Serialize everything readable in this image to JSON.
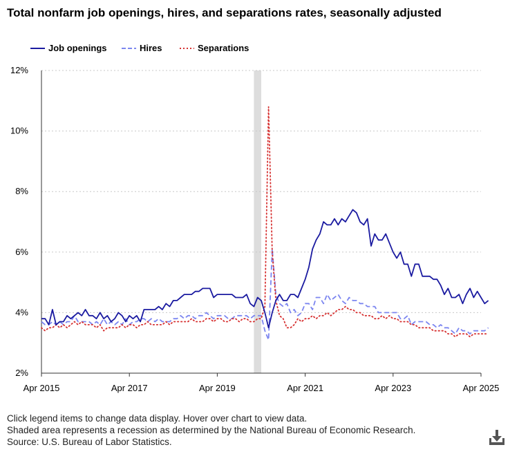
{
  "title": "Total nonfarm job openings, hires, and separations rates, seasonally adjusted",
  "legend": [
    {
      "label": "Job openings",
      "color": "#1a1aa0",
      "style": "solid"
    },
    {
      "label": "Hires",
      "color": "#7c86f0",
      "style": "dashed"
    },
    {
      "label": "Separations",
      "color": "#d63030",
      "style": "dotted"
    }
  ],
  "notes": {
    "line1": "Click legend items to change data display. Hover over chart to view data.",
    "line2": "Shaded area represents a recession as determined by the National Bureau of Economic Research.",
    "source": "Source: U.S. Bureau of Labor Statistics."
  },
  "download_icon": "download-icon",
  "chart_data": {
    "type": "line",
    "x_start": "Apr 2015",
    "x_frequency": "monthly",
    "x_tick_labels": [
      "Apr 2015",
      "Apr 2017",
      "Apr 2019",
      "Apr 2021",
      "Apr 2023",
      "Apr 2025"
    ],
    "ylim": [
      2,
      12
    ],
    "y_ticks": [
      2,
      4,
      6,
      8,
      10,
      12
    ],
    "y_tick_labels": [
      "2%",
      "4%",
      "6%",
      "8%",
      "10%",
      "12%"
    ],
    "grid": "horizontal dotted",
    "legend_position": "top-left",
    "recession_shading": {
      "start": "Feb 2020",
      "end": "Apr 2020",
      "color": "#dddddd"
    },
    "series": [
      {
        "name": "Job openings",
        "color": "#1a1aa0",
        "style": "solid",
        "values": [
          3.8,
          3.8,
          3.6,
          4.1,
          3.6,
          3.7,
          3.7,
          3.9,
          3.8,
          3.9,
          4.0,
          3.9,
          4.1,
          3.9,
          3.9,
          3.8,
          4.0,
          3.8,
          3.9,
          3.7,
          3.8,
          4.0,
          3.9,
          3.7,
          3.9,
          3.8,
          3.9,
          3.7,
          4.1,
          4.1,
          4.1,
          4.1,
          4.2,
          4.1,
          4.3,
          4.2,
          4.4,
          4.4,
          4.5,
          4.6,
          4.6,
          4.6,
          4.7,
          4.7,
          4.8,
          4.8,
          4.8,
          4.5,
          4.6,
          4.6,
          4.6,
          4.6,
          4.6,
          4.5,
          4.5,
          4.5,
          4.6,
          4.3,
          4.2,
          4.5,
          4.4,
          4.0,
          3.5,
          4.0,
          4.4,
          4.6,
          4.4,
          4.4,
          4.6,
          4.6,
          4.5,
          4.8,
          5.1,
          5.5,
          6.1,
          6.4,
          6.6,
          7.0,
          6.9,
          6.9,
          7.1,
          6.9,
          7.1,
          7.0,
          7.2,
          7.4,
          7.3,
          7.0,
          6.9,
          7.1,
          6.2,
          6.6,
          6.4,
          6.4,
          6.6,
          6.3,
          6.0,
          5.8,
          6.0,
          5.6,
          5.6,
          5.2,
          5.6,
          5.6,
          5.2,
          5.2,
          5.2,
          5.1,
          5.1,
          4.9,
          4.6,
          4.8,
          4.5,
          4.5,
          4.6,
          4.3,
          4.6,
          4.8,
          4.5,
          4.7,
          4.5,
          4.3,
          4.4
        ]
      },
      {
        "name": "Hires",
        "color": "#7c86f0",
        "style": "dashed",
        "values": [
          3.7,
          3.6,
          3.6,
          3.7,
          3.6,
          3.7,
          3.6,
          3.7,
          3.7,
          3.9,
          3.7,
          3.7,
          3.7,
          3.7,
          3.6,
          3.7,
          3.6,
          3.8,
          3.6,
          3.7,
          3.6,
          3.7,
          3.6,
          3.8,
          3.6,
          3.7,
          3.7,
          3.8,
          3.8,
          3.7,
          3.8,
          3.7,
          3.8,
          3.7,
          3.7,
          3.7,
          3.8,
          3.8,
          3.9,
          3.8,
          3.9,
          3.9,
          3.8,
          3.9,
          3.9,
          4.0,
          3.9,
          3.8,
          3.9,
          3.9,
          3.9,
          3.8,
          3.8,
          3.9,
          3.9,
          3.9,
          3.9,
          3.8,
          3.9,
          3.9,
          3.9,
          3.4,
          3.1,
          6.1,
          4.6,
          4.3,
          4.2,
          4.3,
          4.0,
          4.1,
          3.9,
          4.0,
          4.3,
          4.3,
          4.1,
          4.5,
          4.5,
          4.3,
          4.6,
          4.4,
          4.5,
          4.6,
          4.4,
          4.3,
          4.5,
          4.4,
          4.4,
          4.3,
          4.3,
          4.2,
          4.2,
          4.2,
          4.0,
          4.0,
          4.0,
          4.0,
          4.0,
          4.0,
          3.8,
          3.8,
          3.9,
          3.6,
          3.7,
          3.7,
          3.7,
          3.7,
          3.6,
          3.6,
          3.5,
          3.6,
          3.5,
          3.5,
          3.4,
          3.3,
          3.5,
          3.4,
          3.4,
          3.3,
          3.4,
          3.4,
          3.4,
          3.4,
          3.5
        ]
      },
      {
        "name": "Separations",
        "color": "#d63030",
        "style": "dotted",
        "values": [
          3.5,
          3.4,
          3.5,
          3.5,
          3.6,
          3.5,
          3.6,
          3.5,
          3.6,
          3.7,
          3.6,
          3.7,
          3.6,
          3.6,
          3.6,
          3.5,
          3.6,
          3.4,
          3.5,
          3.5,
          3.5,
          3.5,
          3.6,
          3.5,
          3.6,
          3.6,
          3.5,
          3.6,
          3.6,
          3.7,
          3.6,
          3.6,
          3.6,
          3.6,
          3.7,
          3.6,
          3.7,
          3.7,
          3.7,
          3.7,
          3.7,
          3.8,
          3.7,
          3.7,
          3.7,
          3.8,
          3.8,
          3.7,
          3.8,
          3.8,
          3.7,
          3.7,
          3.8,
          3.8,
          3.7,
          3.8,
          3.8,
          3.7,
          3.7,
          3.8,
          3.8,
          4.2,
          10.8,
          6.0,
          4.4,
          3.9,
          3.8,
          3.5,
          3.5,
          3.6,
          3.8,
          3.7,
          3.8,
          3.8,
          3.9,
          3.8,
          3.9,
          3.9,
          4.0,
          3.9,
          4.0,
          4.1,
          4.1,
          4.2,
          4.1,
          4.1,
          4.0,
          4.0,
          3.9,
          3.9,
          3.9,
          3.8,
          3.8,
          3.9,
          3.8,
          3.9,
          3.8,
          3.8,
          3.7,
          3.7,
          3.7,
          3.6,
          3.6,
          3.5,
          3.5,
          3.5,
          3.5,
          3.4,
          3.4,
          3.4,
          3.4,
          3.3,
          3.3,
          3.2,
          3.3,
          3.3,
          3.3,
          3.2,
          3.3,
          3.3,
          3.3,
          3.3,
          3.3
        ]
      }
    ]
  }
}
